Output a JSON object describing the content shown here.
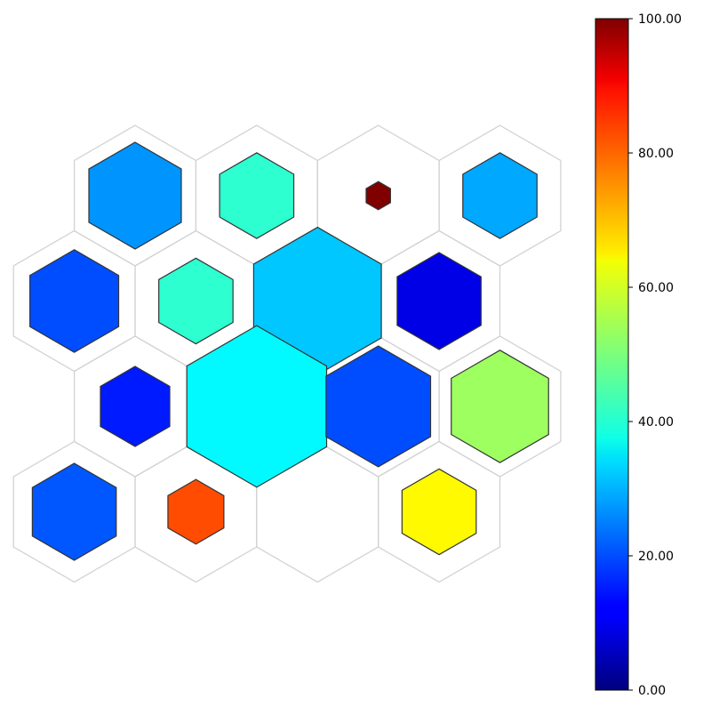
{
  "chart_data": {
    "type": "heatmap",
    "subtype": "hexagonal-grid",
    "title": "",
    "xlabel": "",
    "ylabel": "",
    "grid_rows": 4,
    "grid_cols": 4,
    "cells": [
      {
        "row": 0,
        "col": 0,
        "value": 27,
        "size": 0.76
      },
      {
        "row": 0,
        "col": 1,
        "value": 42,
        "size": 0.61
      },
      {
        "row": 0,
        "col": 2,
        "value": 100,
        "size": 0.2
      },
      {
        "row": 0,
        "col": 3,
        "value": 29,
        "size": 0.61
      },
      {
        "row": 1,
        "col": 0,
        "value": 20,
        "size": 0.73
      },
      {
        "row": 1,
        "col": 1,
        "value": 42,
        "size": 0.61
      },
      {
        "row": 1,
        "col": 2,
        "value": 32,
        "size": 1.05
      },
      {
        "row": 1,
        "col": 3,
        "value": 10,
        "size": 0.69
      },
      {
        "row": 2,
        "col": 0,
        "value": 15,
        "size": 0.57
      },
      {
        "row": 2,
        "col": 1,
        "value": 37,
        "size": 1.15
      },
      {
        "row": 2,
        "col": 2,
        "value": 20,
        "size": 0.86
      },
      {
        "row": 2,
        "col": 3,
        "value": 53,
        "size": 0.8
      },
      {
        "row": 3,
        "col": 0,
        "value": 21,
        "size": 0.69
      },
      {
        "row": 3,
        "col": 1,
        "value": 80,
        "size": 0.46
      },
      {
        "row": 3,
        "col": 2,
        "value": null,
        "size": 0
      },
      {
        "row": 3,
        "col": 3,
        "value": 63,
        "size": 0.61
      }
    ],
    "colormap": "jet",
    "colorbar": {
      "min": 0,
      "max": 100,
      "ticks": [
        0,
        20,
        40,
        60,
        80,
        100
      ],
      "tick_labels": [
        "0.00",
        "20.00",
        "40.00",
        "60.00",
        "80.00",
        "100.00"
      ]
    },
    "grid": false,
    "legend": "colorbar-right"
  }
}
